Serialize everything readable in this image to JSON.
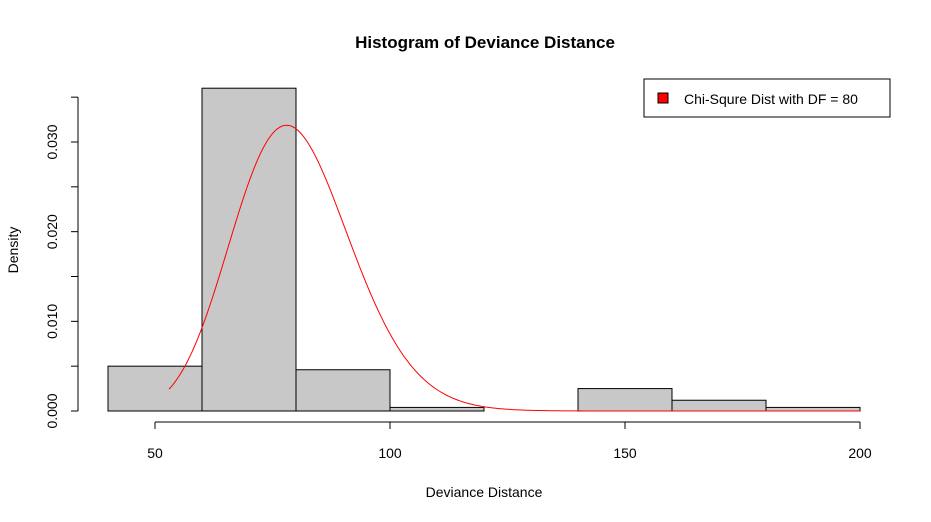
{
  "chart_data": {
    "type": "bar",
    "title": "Histogram of Deviance Distance",
    "xlabel": "Deviance Distance",
    "ylabel": "Density",
    "xlim": [
      40,
      200
    ],
    "ylim": [
      0,
      0.035
    ],
    "x_ticks": [
      "50",
      "100",
      "150",
      "200"
    ],
    "y_ticks": [
      "0.000",
      "0.010",
      "0.020",
      "0.030"
    ],
    "bins": [
      {
        "from": 40,
        "to": 60,
        "density": 0.005
      },
      {
        "from": 60,
        "to": 80,
        "density": 0.036
      },
      {
        "from": 80,
        "to": 100,
        "density": 0.0046
      },
      {
        "from": 100,
        "to": 120,
        "density": 0.0004
      },
      {
        "from": 120,
        "to": 140,
        "density": 0.0
      },
      {
        "from": 140,
        "to": 160,
        "density": 0.0025
      },
      {
        "from": 160,
        "to": 180,
        "density": 0.0012
      },
      {
        "from": 180,
        "to": 200,
        "density": 0.0004
      }
    ],
    "bar_fill": "#c8c8c8",
    "curve": {
      "type": "chi-square-density",
      "df": 80,
      "x_range": [
        53,
        200
      ],
      "color": "#ff0000"
    },
    "legend": {
      "position": "top-right",
      "entries": [
        {
          "label": "Chi-Squre Dist with DF = 80",
          "color": "#ff0000"
        }
      ]
    },
    "grid": false
  }
}
